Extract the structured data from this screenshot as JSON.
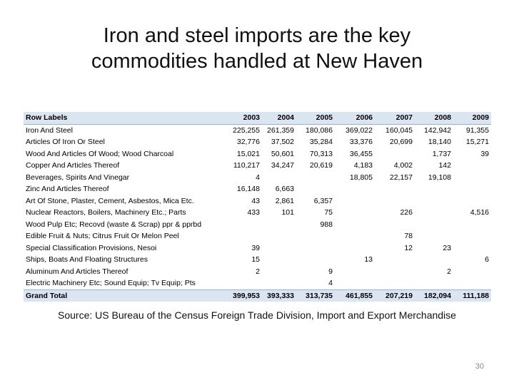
{
  "slide": {
    "title_line1": "Iron and steel imports are the key",
    "title_line2": "commodities handled at New Haven",
    "source": "Source: US Bureau of the Census Foreign Trade Division, Import and Export Merchandise",
    "page_number": "30"
  },
  "table": {
    "columns": [
      "Row Labels",
      "2003",
      "2004",
      "2005",
      "2006",
      "2007",
      "2008",
      "2009"
    ],
    "rows": [
      [
        "Iron And Steel",
        "225,255",
        "261,359",
        "180,086",
        "369,022",
        "160,045",
        "142,942",
        "91,355"
      ],
      [
        "Articles Of Iron Or Steel",
        "32,776",
        "37,502",
        "35,284",
        "33,376",
        "20,699",
        "18,140",
        "15,271"
      ],
      [
        "Wood And Articles Of Wood; Wood Charcoal",
        "15,021",
        "50,601",
        "70,313",
        "36,455",
        "",
        "1,737",
        "39"
      ],
      [
        "Copper And Articles Thereof",
        "110,217",
        "34,247",
        "20,619",
        "4,183",
        "4,002",
        "142",
        ""
      ],
      [
        "Beverages, Spirits And Vinegar",
        "4",
        "",
        "",
        "18,805",
        "22,157",
        "19,108",
        ""
      ],
      [
        "Zinc And Articles Thereof",
        "16,148",
        "6,663",
        "",
        "",
        "",
        "",
        ""
      ],
      [
        "Art Of Stone, Plaster, Cement, Asbestos, Mica Etc.",
        "43",
        "2,861",
        "6,357",
        "",
        "",
        "",
        ""
      ],
      [
        "Nuclear Reactors, Boilers, Machinery Etc.; Parts",
        "433",
        "101",
        "75",
        "",
        "226",
        "",
        "4,516"
      ],
      [
        "Wood Pulp Etc; Recovd (waste & Scrap) ppr & pprbd",
        "",
        "",
        "988",
        "",
        "",
        "",
        ""
      ],
      [
        "Edible Fruit & Nuts; Citrus Fruit Or Melon Peel",
        "",
        "",
        "",
        "",
        "78",
        "",
        ""
      ],
      [
        "Special Classification Provisions, Nesoi",
        "39",
        "",
        "",
        "",
        "12",
        "23",
        ""
      ],
      [
        "Ships, Boats And Floating Structures",
        "15",
        "",
        "",
        "13",
        "",
        "",
        "6"
      ],
      [
        "Aluminum And Articles Thereof",
        "2",
        "",
        "9",
        "",
        "",
        "2",
        ""
      ],
      [
        "Electric Machinery Etc; Sound Equip; Tv Equip; Pts",
        "",
        "",
        "4",
        "",
        "",
        "",
        ""
      ]
    ],
    "total": [
      "Grand Total",
      "399,953",
      "393,333",
      "313,735",
      "461,855",
      "207,219",
      "182,094",
      "111,188"
    ]
  }
}
